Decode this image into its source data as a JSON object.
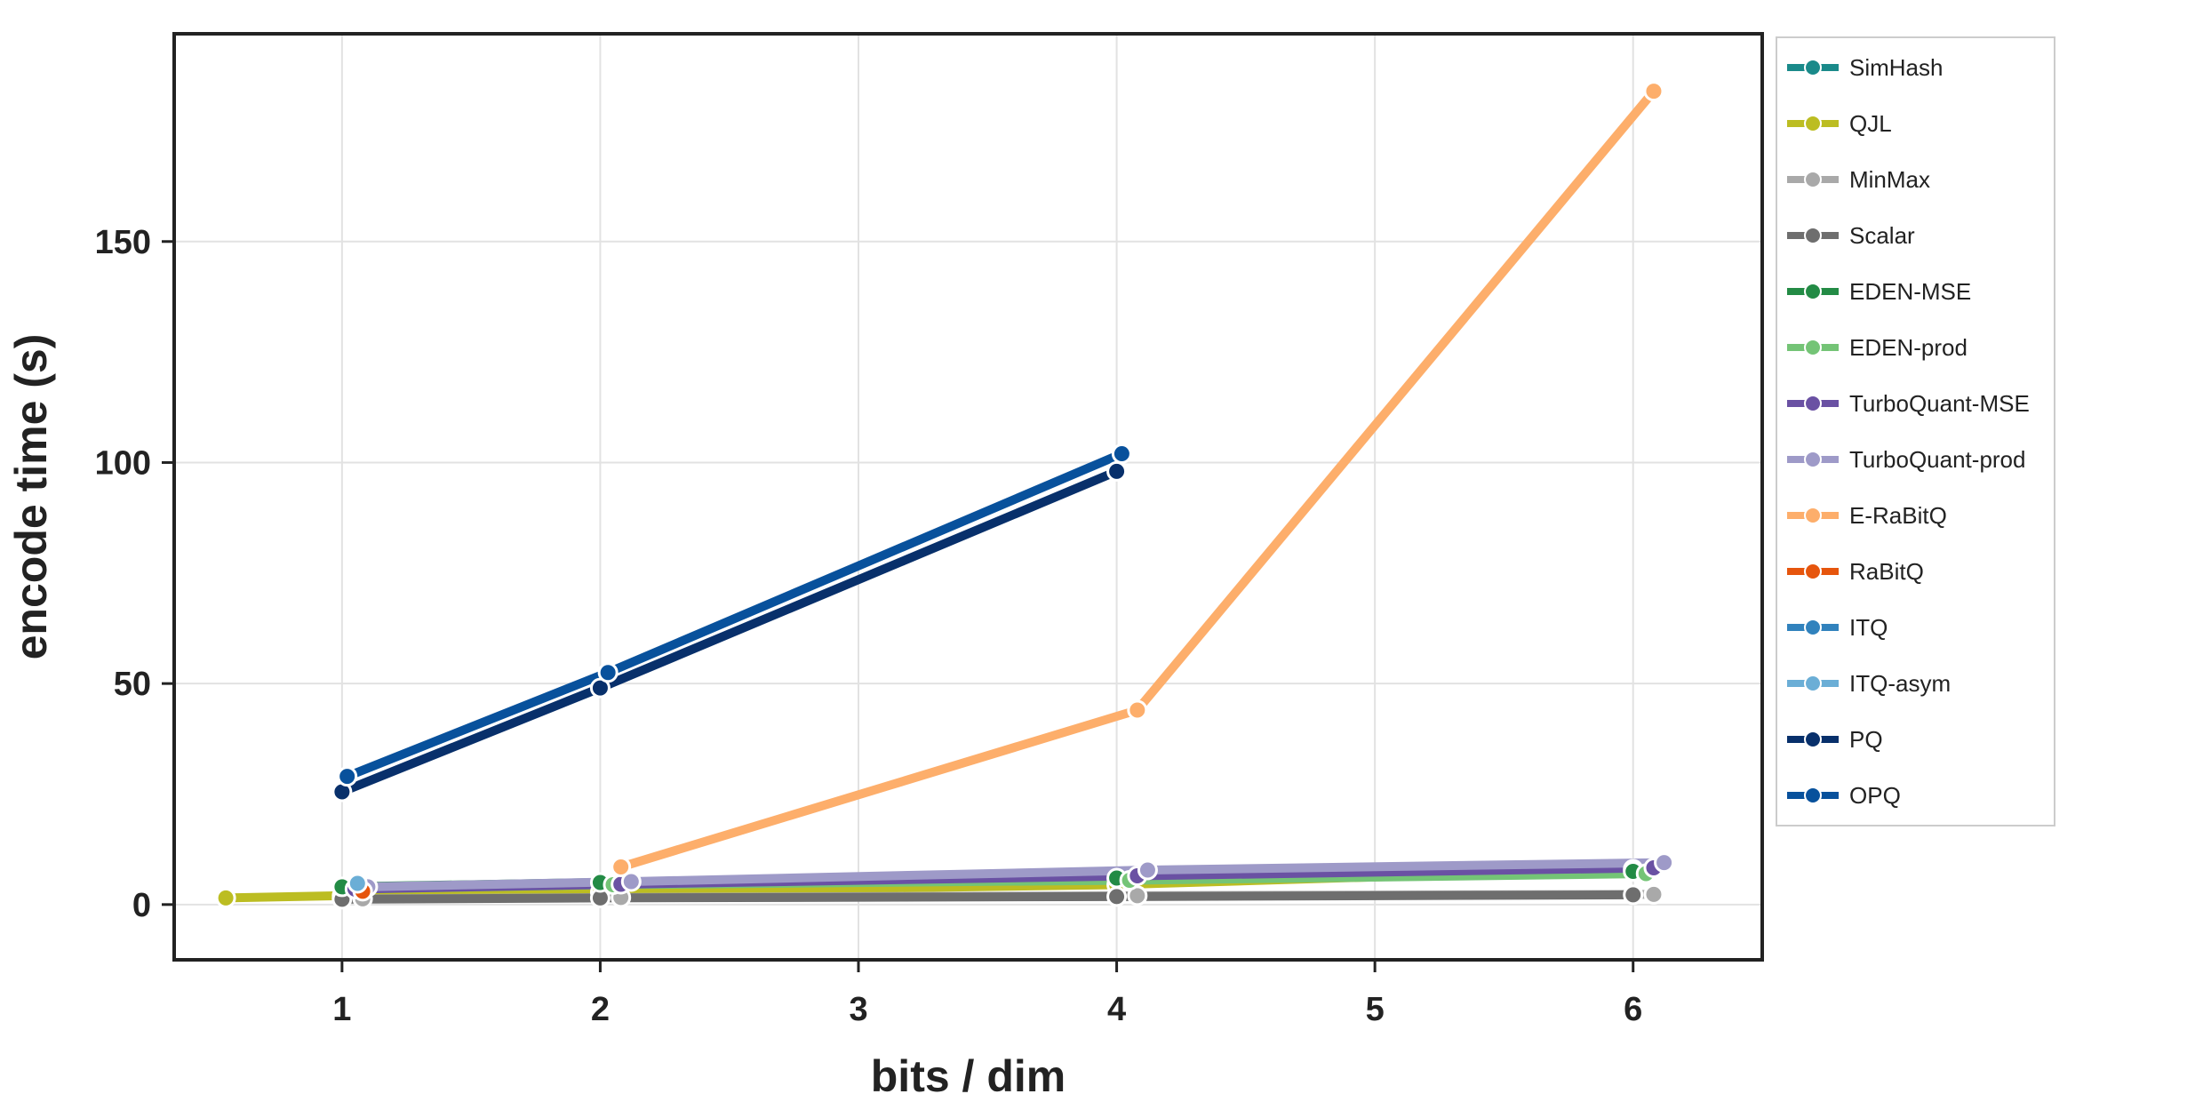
{
  "chart_data": {
    "type": "line",
    "title": "",
    "xlabel": "bits / dim",
    "ylabel": "encode time (s)",
    "xlim": [
      0.35,
      6.5
    ],
    "ylim": [
      -12.5,
      197
    ],
    "xticks": [
      1,
      2,
      3,
      4,
      5,
      6
    ],
    "yticks": [
      0,
      50,
      100,
      150
    ],
    "grid": true,
    "legend_position": "outside-right",
    "series": [
      {
        "name": "SimHash",
        "color": "#1a8a8a",
        "x": [
          1
        ],
        "y": [
          1.5
        ]
      },
      {
        "name": "QJL",
        "color": "#bcbd22",
        "x": [
          0.55,
          1,
          2,
          4,
          6
        ],
        "y": [
          1.5,
          2.0,
          2.8,
          4.5,
          8.0
        ]
      },
      {
        "name": "MinMax",
        "color": "#a9a9a9",
        "x": [
          1.08,
          2.08,
          4.08,
          6.08
        ],
        "y": [
          1.3,
          1.6,
          2.0,
          2.3
        ]
      },
      {
        "name": "Scalar",
        "color": "#6e6e6e",
        "x": [
          1,
          2,
          4,
          6
        ],
        "y": [
          1.2,
          1.5,
          1.8,
          2.2
        ]
      },
      {
        "name": "EDEN-MSE",
        "color": "#238b45",
        "x": [
          1,
          2,
          4,
          6
        ],
        "y": [
          4.0,
          5.0,
          6.0,
          7.5
        ]
      },
      {
        "name": "EDEN-prod",
        "color": "#74c476",
        "x": [
          1.05,
          2.05,
          4.05,
          6.05
        ],
        "y": [
          3.5,
          4.5,
          5.5,
          7.0
        ]
      },
      {
        "name": "TurboQuant-MSE",
        "color": "#6a51a3",
        "x": [
          1.05,
          2.08,
          4.08,
          6.08
        ],
        "y": [
          3.5,
          4.6,
          6.5,
          8.3
        ]
      },
      {
        "name": "TurboQuant-prod",
        "color": "#9e9ac8",
        "x": [
          1.1,
          2.12,
          4.12,
          6.12
        ],
        "y": [
          4.0,
          5.2,
          7.8,
          9.5
        ]
      },
      {
        "name": "E-RaBitQ",
        "color": "#fdae6b",
        "x": [
          2.08,
          4.08,
          6.08
        ],
        "y": [
          8.5,
          44.0,
          184.0
        ]
      },
      {
        "name": "RaBitQ",
        "color": "#e6550d",
        "x": [
          1.08
        ],
        "y": [
          3.0
        ]
      },
      {
        "name": "ITQ",
        "color": "#3182bd",
        "x": [],
        "y": []
      },
      {
        "name": "ITQ-asym",
        "color": "#6baed6",
        "x": [
          1.06
        ],
        "y": [
          4.8
        ]
      },
      {
        "name": "PQ",
        "color": "#08306b",
        "x": [
          1,
          2,
          4
        ],
        "y": [
          25.5,
          49.0,
          98.0
        ]
      },
      {
        "name": "OPQ",
        "color": "#08519c",
        "x": [
          1.02,
          2.03,
          4.02
        ],
        "y": [
          29.0,
          52.5,
          102.0
        ]
      }
    ]
  }
}
